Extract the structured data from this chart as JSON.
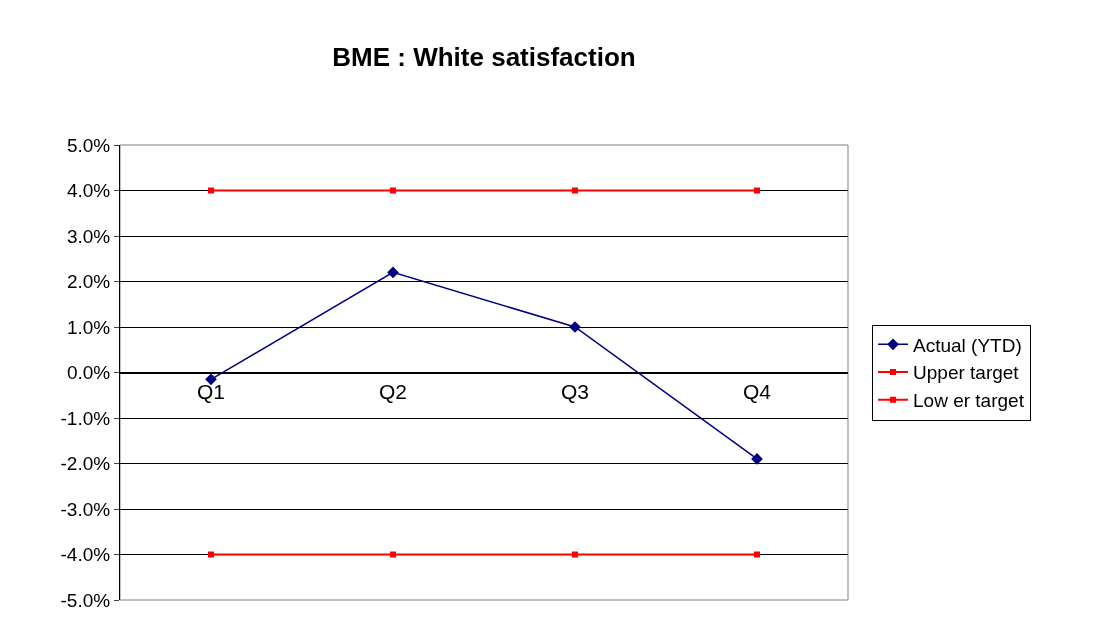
{
  "chart_data": {
    "type": "line",
    "title": "BME : White satisfaction",
    "categories": [
      "Q1",
      "Q2",
      "Q3",
      "Q4"
    ],
    "series": [
      {
        "name": "Actual (YTD)",
        "color": "#000080",
        "values": [
          -0.15,
          2.2,
          1.0,
          -1.9
        ],
        "marker": "diamond"
      },
      {
        "name": "Upper target",
        "color": "#ff0000",
        "values": [
          4,
          4,
          4,
          4
        ],
        "marker": "square"
      },
      {
        "name": "Low er target",
        "color": "#ff0000",
        "values": [
          -4,
          -4,
          -4,
          -4
        ],
        "marker": "square"
      }
    ],
    "ylim": [
      -5,
      5
    ],
    "yticks": [
      {
        "value": -5,
        "label": "-5.0%"
      },
      {
        "value": -4,
        "label": "-4.0%"
      },
      {
        "value": -3,
        "label": "-3.0%"
      },
      {
        "value": -2,
        "label": "-2.0%"
      },
      {
        "value": -1,
        "label": "-1.0%"
      },
      {
        "value": 0,
        "label": "0.0%"
      },
      {
        "value": 1,
        "label": "1.0%"
      },
      {
        "value": 2,
        "label": "2.0%"
      },
      {
        "value": 3,
        "label": "3.0%"
      },
      {
        "value": 4,
        "label": "4.0%"
      },
      {
        "value": 5,
        "label": "5.0%"
      }
    ],
    "grid": "y",
    "legend": "right",
    "line_style": "solid"
  }
}
